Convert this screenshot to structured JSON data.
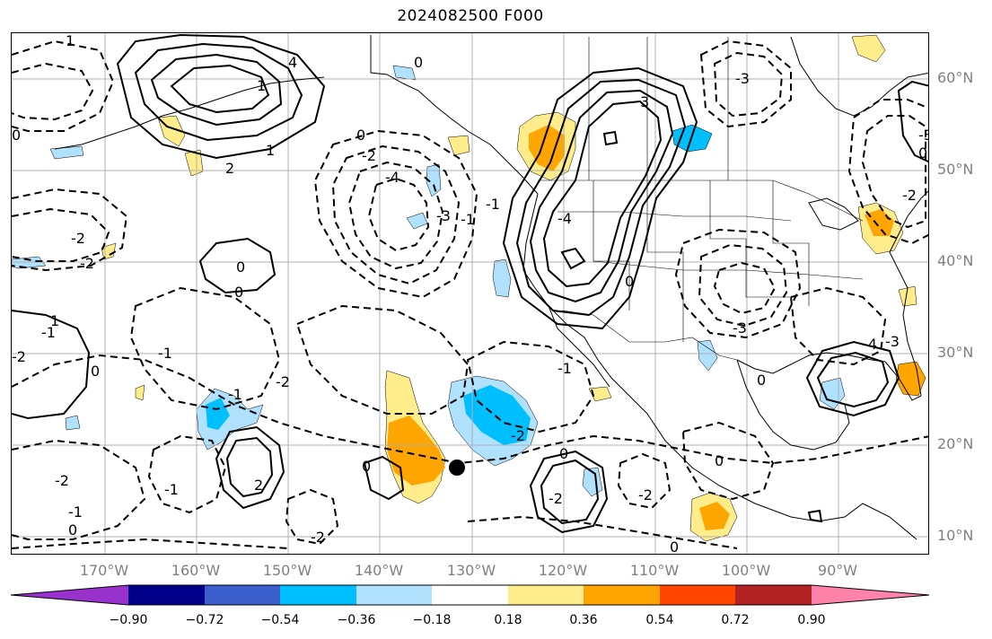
{
  "title": "2024082500 F000",
  "lat_labels": [
    "60°N",
    "50°N",
    "40°N",
    "30°N",
    "20°N",
    "10°N"
  ],
  "lon_labels": [
    "170°W",
    "160°W",
    "150°W",
    "140°W",
    "130°W",
    "120°W",
    "110°W",
    "100°W",
    "90°W"
  ],
  "colorbar": {
    "colors": [
      "#9932cc",
      "#00008b",
      "#3a5fcd",
      "#00bfff",
      "#b0e2ff",
      "#ffffff",
      "#ffec8b",
      "#ffa500",
      "#ff4500",
      "#b22222",
      "#ff82ab"
    ],
    "ticks": [
      "−0.90",
      "−0.72",
      "−0.54",
      "−0.36",
      "−0.18",
      "0.18",
      "0.36",
      "0.54",
      "0.72",
      "0.90"
    ]
  },
  "contour_labels": [
    "1",
    "0",
    "3",
    "2",
    "0",
    "4",
    "0",
    "-3",
    "0",
    "-2",
    "-4",
    "-3",
    "-2",
    "-2",
    "-1",
    "0",
    "1",
    "-1",
    "-2",
    "-1",
    "0",
    "1",
    "-1",
    "0",
    "2",
    "-2",
    "0",
    "-2",
    "-1",
    "0",
    "-1",
    "-2",
    "-4",
    "-3",
    "-3",
    "0",
    "-2",
    "-4",
    "-3",
    "0",
    "0",
    "-2",
    "0",
    "-1",
    "-2",
    "-2",
    "0",
    "1",
    "-1"
  ],
  "marker": "storm-center-dot"
}
